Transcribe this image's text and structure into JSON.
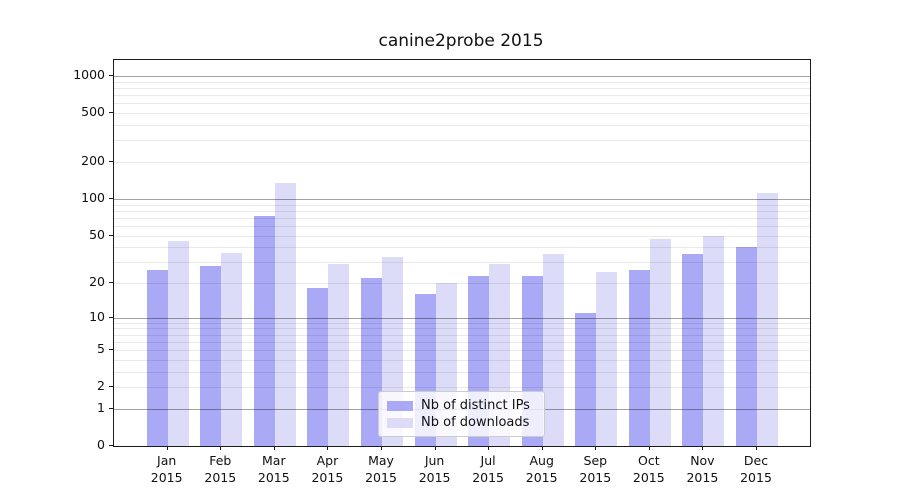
{
  "title": "canine2probe 2015",
  "chart_data": {
    "type": "bar",
    "title": "canine2probe 2015",
    "yscale": "log(1+x)",
    "ylim": [
      0,
      1350
    ],
    "xlabel": "",
    "ylabel": "",
    "grid": true,
    "legend_position": "lower center",
    "categories": [
      "Jan",
      "Feb",
      "Mar",
      "Apr",
      "May",
      "Jun",
      "Jul",
      "Aug",
      "Sep",
      "Oct",
      "Nov",
      "Dec"
    ],
    "year_label": "2015",
    "series": [
      {
        "name": "Nb of distinct IPs",
        "color": "#a9a9f6",
        "values": [
          26,
          28,
          73,
          18,
          22,
          16,
          23,
          23,
          11,
          26,
          35,
          40
        ]
      },
      {
        "name": "Nb of downloads",
        "color": "#dcdcf9",
        "values": [
          45,
          36,
          135,
          29,
          33,
          20,
          29,
          35,
          25,
          47,
          50,
          112
        ]
      }
    ],
    "yticks": [
      1000,
      500,
      200,
      100,
      50,
      20,
      10,
      5,
      2,
      1,
      0
    ],
    "major_gridlines": [
      1,
      10,
      100,
      1000
    ],
    "minor_gridlines": [
      2,
      3,
      4,
      5,
      6,
      7,
      8,
      9,
      20,
      30,
      40,
      50,
      60,
      70,
      80,
      90,
      200,
      300,
      400,
      500,
      600,
      700,
      800,
      900
    ]
  },
  "colors": {
    "spine": "#1c1c1c",
    "background": "#ffffff",
    "series_ips": "#a9a9f6",
    "series_downloads": "#dcdcf9"
  }
}
